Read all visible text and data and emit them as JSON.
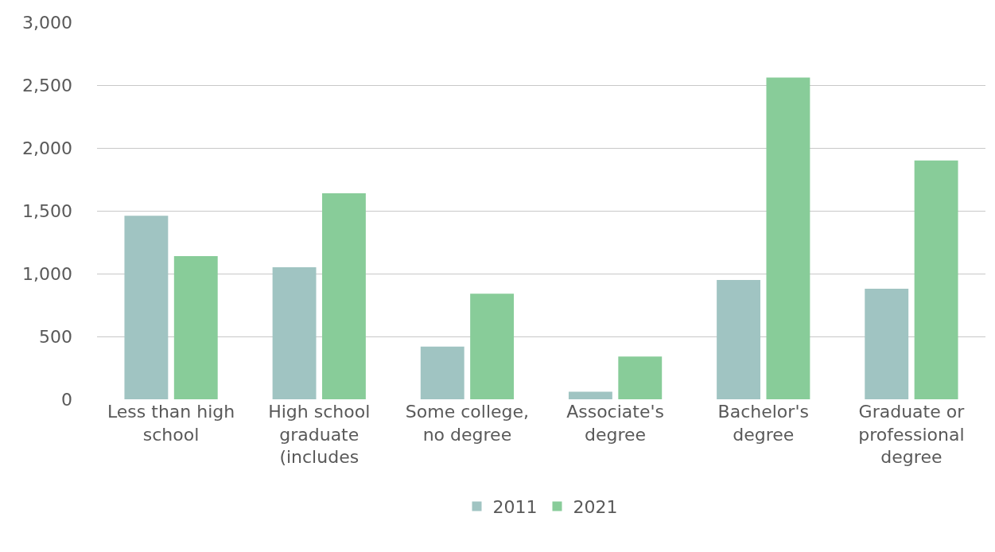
{
  "chart_data": {
    "type": "bar",
    "categories": [
      "Less than high school",
      "High school graduate (includes",
      "Some college, no degree",
      "Associate's degree",
      "Bachelor's degree",
      "Graduate or professional degree"
    ],
    "series": [
      {
        "name": "2011",
        "color": "#a0c4c2",
        "values": [
          1460,
          1050,
          420,
          60,
          950,
          880
        ]
      },
      {
        "name": "2021",
        "color": "#88cc99",
        "values": [
          1140,
          1640,
          840,
          340,
          2560,
          1900
        ]
      }
    ],
    "ylim": [
      0,
      3000
    ],
    "yticks": [
      {
        "value": 0,
        "label": "0"
      },
      {
        "value": 500,
        "label": "500"
      },
      {
        "value": 1000,
        "label": "1,000"
      },
      {
        "value": 1500,
        "label": "1,500"
      },
      {
        "value": 2000,
        "label": "2,000"
      },
      {
        "value": 2500,
        "label": "2,500"
      },
      {
        "value": 3000,
        "label": "3,000"
      }
    ],
    "grid": "y",
    "legend": "bottom"
  }
}
